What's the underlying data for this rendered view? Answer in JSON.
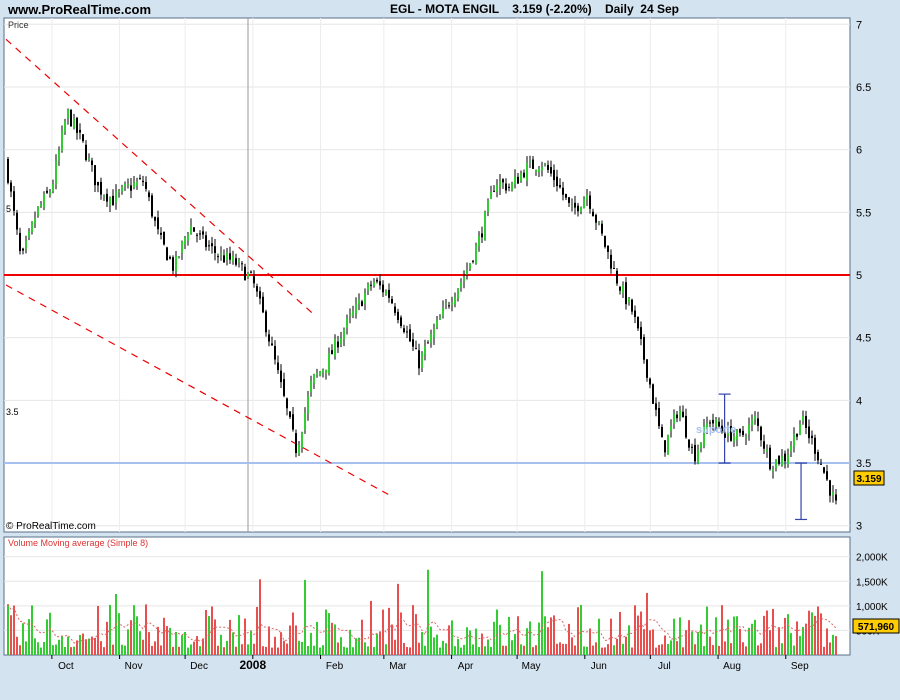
{
  "header": {
    "site": "www.ProRealTime.com",
    "title": "EGL - MOTA ENGIL    3.159 (-2.20%)    Daily  24 Sep"
  },
  "price_panel": {
    "label": "Price",
    "copyright": "© ProRealTime.com",
    "last_price": "3.159",
    "left_marks": [
      "5",
      "3.5"
    ],
    "annotation": "suporte"
  },
  "volume_panel": {
    "label": "Volume Moving average (Simple 8)",
    "last_value": "571,960"
  },
  "colors": {
    "up_bar": "#33cc33",
    "down_bar": "#e85050",
    "resistance": "#ee0000",
    "support": "#a8c0f0",
    "trend": "#ee0000",
    "range_marker": "#3344aa",
    "price_tag": "#ffcc00"
  },
  "chart_data": [
    {
      "type": "line",
      "title": "EGL - MOTA ENGIL",
      "ylabel": "Price",
      "ylim": [
        2.95,
        7.05
      ],
      "yticks": [
        7,
        6.5,
        6,
        5.5,
        5,
        4.5,
        4,
        3.5,
        3
      ],
      "x_tick_labels": [
        "Oct",
        "Nov",
        "Dec",
        "2008",
        "Feb",
        "Mar",
        "Apr",
        "May",
        "Jun",
        "Jul",
        "Aug",
        "Sep"
      ],
      "x_tick_dates": [
        "2007-10-01",
        "2007-11-01",
        "2007-12-01",
        "2008-01-01",
        "2008-02-01",
        "2008-03-01",
        "2008-04-01",
        "2008-05-01",
        "2008-06-01",
        "2008-07-01",
        "2008-08-01",
        "2008-09-01"
      ],
      "series": [
        {
          "x": [
            "2007-09-10",
            "2007-09-17",
            "2007-09-24",
            "2007-10-01",
            "2007-10-08",
            "2007-10-15",
            "2007-10-22",
            "2007-10-29",
            "2007-11-05",
            "2007-11-12",
            "2007-11-19",
            "2007-11-26",
            "2007-12-03",
            "2007-12-10",
            "2007-12-17",
            "2007-12-24",
            "2008-01-01",
            "2008-01-07",
            "2008-01-14",
            "2008-01-21",
            "2008-01-28",
            "2008-02-04",
            "2008-02-11",
            "2008-02-18",
            "2008-02-25",
            "2008-03-03",
            "2008-03-10",
            "2008-03-17",
            "2008-03-24",
            "2008-03-31",
            "2008-04-07",
            "2008-04-14",
            "2008-04-21",
            "2008-04-28",
            "2008-05-05",
            "2008-05-12",
            "2008-05-19",
            "2008-05-26",
            "2008-06-02",
            "2008-06-09",
            "2008-06-16",
            "2008-06-23",
            "2008-06-30",
            "2008-07-07",
            "2008-07-14",
            "2008-07-21",
            "2008-07-28",
            "2008-08-04",
            "2008-08-11",
            "2008-08-18",
            "2008-08-25",
            "2008-09-01",
            "2008-09-08",
            "2008-09-15",
            "2008-09-24"
          ],
          "values": [
            5.9,
            5.1,
            5.5,
            5.7,
            6.3,
            6.05,
            5.7,
            5.6,
            5.7,
            5.75,
            5.3,
            5.05,
            5.4,
            5.25,
            5.15,
            5.1,
            4.95,
            4.6,
            4.1,
            3.6,
            4.15,
            4.3,
            4.55,
            4.75,
            4.95,
            4.85,
            4.6,
            4.3,
            4.55,
            4.8,
            5.0,
            5.3,
            5.75,
            5.7,
            5.85,
            5.9,
            5.75,
            5.5,
            5.65,
            5.3,
            4.95,
            4.7,
            4.2,
            3.6,
            3.95,
            3.55,
            3.85,
            3.75,
            3.7,
            3.85,
            3.5,
            3.55,
            3.85,
            3.6,
            3.159
          ]
        }
      ],
      "overlays": {
        "resistance": 5.0,
        "support": 3.5,
        "upper_channel": [
          [
            "2007-09-10",
            6.88
          ],
          [
            "2008-01-28",
            4.7
          ]
        ],
        "lower_channel": [
          [
            "2007-09-10",
            4.92
          ],
          [
            "2008-03-03",
            3.25
          ]
        ],
        "range_marker_aug": [
          3.5,
          4.05
        ],
        "range_marker_sep": [
          3.05,
          3.5
        ]
      }
    },
    {
      "type": "bar",
      "ylabel": "Volume",
      "ylim": [
        0,
        2400000
      ],
      "yticks": [
        2000000,
        1500000,
        1000000,
        500000
      ],
      "ytick_labels": [
        "2,000K",
        "1,500K",
        "1,000K",
        "500K"
      ],
      "last_value": 571960
    }
  ]
}
